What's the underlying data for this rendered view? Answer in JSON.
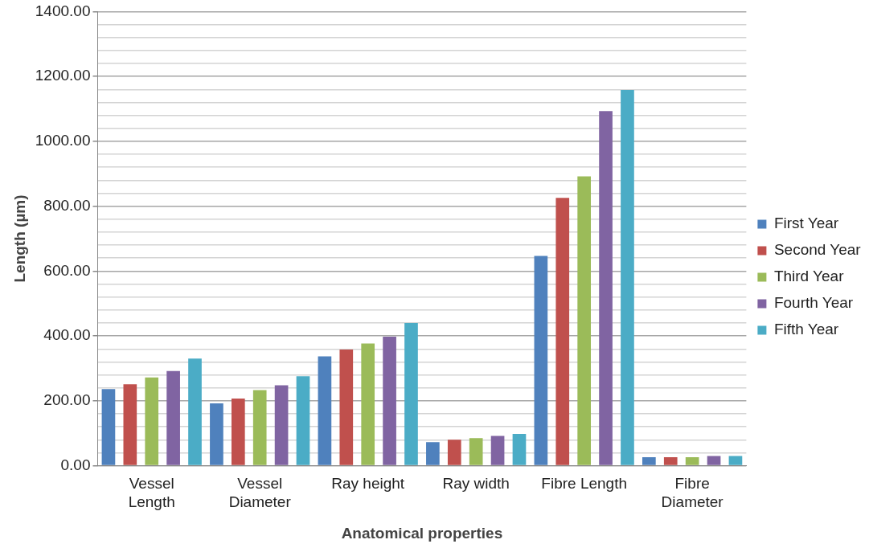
{
  "chart_data": {
    "type": "bar",
    "xlabel": "Anatomical properties",
    "ylabel": "Length (µm)",
    "categories": [
      "Vessel\nLength",
      "Vessel\nDiameter",
      "Ray height",
      "Ray width",
      "Fibre Length",
      "Fibre\nDiameter"
    ],
    "series": [
      {
        "name": "First Year",
        "color": "#4f81bd",
        "values": [
          236,
          192,
          337,
          73,
          647,
          26
        ]
      },
      {
        "name": "Second Year",
        "color": "#c0504d",
        "values": [
          251,
          207,
          358,
          80,
          826,
          26
        ]
      },
      {
        "name": "Third Year",
        "color": "#9bbb59",
        "values": [
          272,
          233,
          377,
          85,
          892,
          26
        ]
      },
      {
        "name": "Fourth Year",
        "color": "#8064a2",
        "values": [
          292,
          248,
          398,
          92,
          1093,
          30
        ]
      },
      {
        "name": "Fifth Year",
        "color": "#4bacc6",
        "values": [
          330,
          276,
          440,
          98,
          1158,
          30
        ]
      }
    ],
    "ylim": [
      0,
      1400
    ],
    "yticks": [
      {
        "value": 0,
        "label": "0.00"
      },
      {
        "value": 40,
        "label": null
      },
      {
        "value": 80,
        "label": null
      },
      {
        "value": 120,
        "label": null
      },
      {
        "value": 160,
        "label": null
      },
      {
        "value": 200,
        "label": "200.00"
      },
      {
        "value": 240,
        "label": null
      },
      {
        "value": 280,
        "label": null
      },
      {
        "value": 320,
        "label": null
      },
      {
        "value": 360,
        "label": null
      },
      {
        "value": 400,
        "label": "400.00"
      },
      {
        "value": 440,
        "label": null
      },
      {
        "value": 480,
        "label": null
      },
      {
        "value": 520,
        "label": null
      },
      {
        "value": 560,
        "label": null
      },
      {
        "value": 600,
        "label": "600.00"
      },
      {
        "value": 640,
        "label": null
      },
      {
        "value": 680,
        "label": null
      },
      {
        "value": 720,
        "label": null
      },
      {
        "value": 760,
        "label": null
      },
      {
        "value": 800,
        "label": "800.00"
      },
      {
        "value": 840,
        "label": null
      },
      {
        "value": 880,
        "label": null
      },
      {
        "value": 920,
        "label": null
      },
      {
        "value": 960,
        "label": null
      },
      {
        "value": 1000,
        "label": "1000.00"
      },
      {
        "value": 1040,
        "label": null
      },
      {
        "value": 1080,
        "label": null
      },
      {
        "value": 1120,
        "label": null
      },
      {
        "value": 1160,
        "label": null
      },
      {
        "value": 1200,
        "label": "1200.00"
      },
      {
        "value": 1240,
        "label": null
      },
      {
        "value": 1280,
        "label": null
      },
      {
        "value": 1320,
        "label": null
      },
      {
        "value": 1360,
        "label": null
      },
      {
        "value": 1400,
        "label": "1400.00"
      }
    ],
    "grid": "y",
    "legend": "right"
  }
}
